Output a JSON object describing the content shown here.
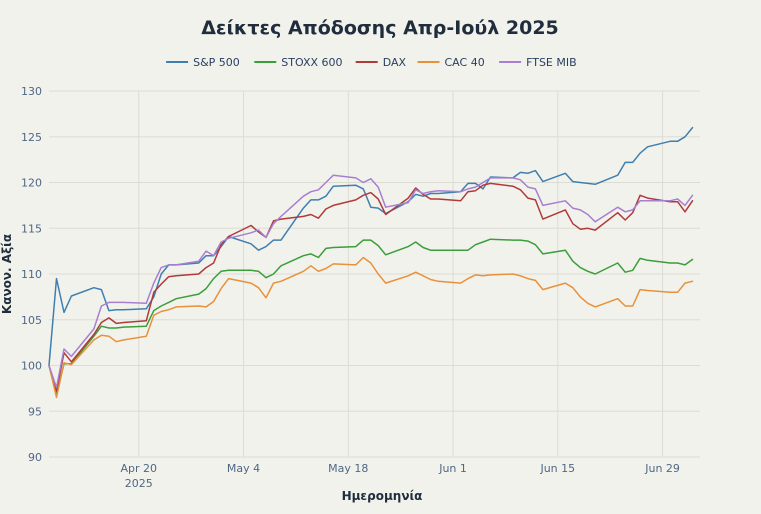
{
  "chart_data": {
    "type": "line",
    "title": "Δείκτες Απόδοσης Απρ-Ιούλ 2025",
    "xlabel": "Ημερομηνία",
    "ylabel": "Κανον. Αξία",
    "ylim": [
      90,
      130
    ],
    "xlim": [
      "2025-04-08",
      "2025-07-04"
    ],
    "yticks": [
      90,
      95,
      100,
      105,
      110,
      115,
      120,
      125,
      130
    ],
    "xticks": [
      {
        "date": "2025-04-20",
        "label": "Apr 20",
        "sublabel": "2025"
      },
      {
        "date": "2025-05-04",
        "label": "May 4",
        "sublabel": ""
      },
      {
        "date": "2025-05-18",
        "label": "May 18",
        "sublabel": ""
      },
      {
        "date": "2025-06-01",
        "label": "Jun 1",
        "sublabel": ""
      },
      {
        "date": "2025-06-15",
        "label": "Jun 15",
        "sublabel": ""
      },
      {
        "date": "2025-06-29",
        "label": "Jun 29",
        "sublabel": ""
      }
    ],
    "grid": true,
    "legend_position": "top-center",
    "x": [
      "2025-04-08",
      "2025-04-09",
      "2025-04-10",
      "2025-04-11",
      "2025-04-14",
      "2025-04-15",
      "2025-04-16",
      "2025-04-17",
      "2025-04-18",
      "2025-04-21",
      "2025-04-22",
      "2025-04-23",
      "2025-04-24",
      "2025-04-25",
      "2025-04-28",
      "2025-04-29",
      "2025-04-30",
      "2025-05-01",
      "2025-05-02",
      "2025-05-05",
      "2025-05-06",
      "2025-05-07",
      "2025-05-08",
      "2025-05-09",
      "2025-05-12",
      "2025-05-13",
      "2025-05-14",
      "2025-05-15",
      "2025-05-16",
      "2025-05-19",
      "2025-05-20",
      "2025-05-21",
      "2025-05-22",
      "2025-05-23",
      "2025-05-26",
      "2025-05-27",
      "2025-05-28",
      "2025-05-29",
      "2025-05-30",
      "2025-06-02",
      "2025-06-03",
      "2025-06-04",
      "2025-06-05",
      "2025-06-06",
      "2025-06-09",
      "2025-06-10",
      "2025-06-11",
      "2025-06-12",
      "2025-06-13",
      "2025-06-16",
      "2025-06-17",
      "2025-06-18",
      "2025-06-19",
      "2025-06-20",
      "2025-06-23",
      "2025-06-24",
      "2025-06-25",
      "2025-06-26",
      "2025-06-27",
      "2025-06-30",
      "2025-07-01",
      "2025-07-02",
      "2025-07-03"
    ],
    "series": [
      {
        "name": "S&P 500",
        "color": "#3f7fb0",
        "values": [
          100.0,
          109.5,
          105.8,
          107.6,
          108.5,
          108.3,
          106.0,
          106.1,
          106.1,
          106.2,
          107.5,
          110.0,
          111.0,
          111.0,
          111.2,
          112.0,
          112.0,
          113.0,
          114.1,
          113.3,
          112.6,
          113.0,
          113.7,
          113.7,
          117.2,
          118.1,
          118.1,
          118.5,
          119.6,
          119.7,
          119.3,
          117.3,
          117.2,
          116.6,
          117.9,
          118.7,
          118.5,
          118.8,
          118.8,
          119.0,
          119.9,
          119.9,
          119.3,
          120.6,
          120.5,
          121.1,
          121.0,
          121.3,
          120.1,
          121.0,
          120.1,
          120.0,
          119.9,
          119.8,
          120.8,
          122.2,
          122.2,
          123.2,
          123.9,
          124.5,
          124.5,
          125.0,
          126.0
        ]
      },
      {
        "name": "STOXX 600",
        "color": "#3a9e3a",
        "values": [
          100.0,
          96.8,
          100.2,
          100.2,
          103.2,
          104.3,
          104.1,
          104.1,
          104.2,
          104.3,
          106.0,
          106.5,
          106.9,
          107.3,
          107.8,
          108.4,
          109.5,
          110.3,
          110.4,
          110.4,
          110.3,
          109.6,
          110.0,
          110.9,
          112.0,
          112.2,
          111.8,
          112.8,
          112.9,
          113.0,
          113.7,
          113.7,
          113.1,
          112.1,
          113.0,
          113.5,
          112.9,
          112.6,
          112.6,
          112.6,
          112.6,
          113.2,
          113.5,
          113.8,
          113.7,
          113.7,
          113.6,
          113.2,
          112.2,
          112.6,
          111.4,
          110.7,
          110.3,
          110.0,
          111.2,
          110.2,
          110.4,
          111.7,
          111.5,
          111.2,
          111.2,
          111.0,
          111.6
        ]
      },
      {
        "name": "DAX",
        "color": "#b03a3a",
        "values": [
          100.0,
          97.2,
          101.4,
          100.4,
          103.4,
          104.7,
          105.2,
          104.6,
          104.7,
          104.9,
          108.0,
          108.9,
          109.7,
          109.8,
          110.0,
          110.7,
          111.2,
          113.2,
          114.1,
          115.3,
          114.6,
          114.0,
          115.8,
          116.0,
          116.3,
          116.5,
          116.1,
          117.1,
          117.5,
          118.1,
          118.6,
          118.9,
          118.2,
          116.5,
          118.3,
          119.4,
          118.7,
          118.2,
          118.2,
          118.0,
          119.0,
          119.1,
          119.7,
          119.9,
          119.6,
          119.2,
          118.3,
          118.1,
          116.0,
          117.0,
          115.5,
          114.9,
          115.0,
          114.8,
          116.7,
          115.9,
          116.7,
          118.6,
          118.3,
          117.9,
          117.9,
          116.8,
          118.0
        ]
      },
      {
        "name": "CAC 40",
        "color": "#e8913a",
        "values": [
          100.0,
          96.5,
          100.3,
          100.1,
          102.8,
          103.3,
          103.2,
          102.6,
          102.8,
          103.2,
          105.5,
          105.9,
          106.1,
          106.4,
          106.5,
          106.4,
          107.0,
          108.4,
          109.5,
          109.0,
          108.5,
          107.4,
          109.0,
          109.2,
          110.3,
          110.9,
          110.3,
          110.6,
          111.1,
          111.0,
          111.8,
          111.2,
          110.0,
          109.0,
          109.8,
          110.2,
          109.8,
          109.4,
          109.2,
          109.0,
          109.5,
          109.9,
          109.8,
          109.9,
          110.0,
          109.8,
          109.5,
          109.3,
          108.3,
          109.0,
          108.5,
          107.5,
          106.8,
          106.4,
          107.3,
          106.5,
          106.5,
          108.3,
          108.2,
          108.0,
          108.0,
          109.0,
          109.2
        ]
      },
      {
        "name": "FTSE MIB",
        "color": "#a77fd0",
        "values": [
          100.0,
          97.6,
          101.8,
          101.0,
          104.0,
          106.5,
          106.9,
          106.9,
          106.9,
          106.8,
          109.0,
          110.7,
          111.0,
          111.0,
          111.4,
          112.5,
          112.0,
          113.5,
          113.9,
          114.5,
          114.8,
          114.0,
          115.5,
          116.3,
          118.5,
          119.0,
          119.2,
          120.0,
          120.8,
          120.5,
          120.0,
          120.4,
          119.5,
          117.3,
          117.8,
          119.2,
          118.8,
          119.0,
          119.1,
          119.0,
          119.3,
          119.5,
          120.0,
          120.5,
          120.5,
          120.3,
          119.5,
          119.3,
          117.5,
          118.0,
          117.2,
          117.0,
          116.5,
          115.7,
          117.3,
          116.8,
          117.0,
          118.0,
          118.0,
          118.0,
          118.2,
          117.5,
          118.6
        ]
      }
    ]
  }
}
